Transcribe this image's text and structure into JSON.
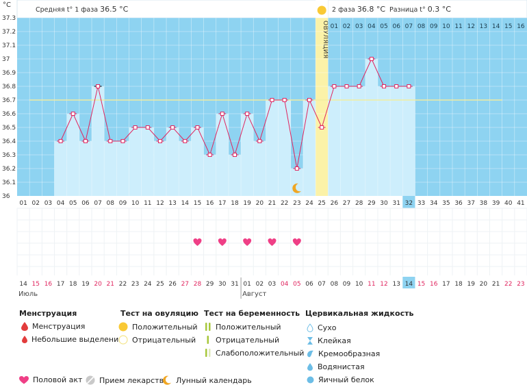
{
  "header": {
    "unit": "°C",
    "phase1_label": "Средняя t° 1 фаза",
    "phase1_value": "36.5 °C",
    "phase2_label": "2 фаза",
    "phase2_value": "36.8 °C",
    "diff_label": "Разница t°",
    "diff_value": "0.3 °C",
    "ovulation_label": "ОВУЛЯЦИЯ"
  },
  "chart_data": {
    "type": "bar",
    "ylabel": "°C",
    "ylim": [
      36,
      37.3
    ],
    "yticks": [
      "37.3",
      "37.2",
      "37.1",
      "37",
      "36.9",
      "36.8",
      "36.7",
      "36.6",
      "36.5",
      "36.4",
      "36.3",
      "36.2",
      "36.1",
      "36"
    ],
    "cycle_days": [
      "01",
      "02",
      "03",
      "04",
      "05",
      "06",
      "07",
      "08",
      "09",
      "10",
      "11",
      "12",
      "13",
      "14",
      "15",
      "16",
      "17",
      "18",
      "19",
      "20",
      "21",
      "22",
      "23",
      "24",
      "25",
      "26",
      "27",
      "28",
      "29",
      "30",
      "31",
      "32",
      "33",
      "34",
      "35",
      "36",
      "37",
      "38",
      "39",
      "40",
      "41"
    ],
    "temperatures": [
      null,
      null,
      null,
      36.4,
      36.6,
      36.4,
      36.8,
      36.4,
      36.4,
      36.5,
      36.5,
      36.4,
      36.5,
      36.4,
      36.5,
      36.3,
      36.6,
      36.3,
      36.6,
      36.4,
      36.7,
      36.7,
      36.2,
      36.7,
      36.5,
      36.8,
      36.8,
      36.8,
      37.0,
      36.8,
      36.8,
      36.8,
      null,
      null,
      null,
      null,
      null,
      null,
      null,
      null,
      null
    ],
    "coverline": 36.7,
    "ovulation_day": 25,
    "current_day": 32,
    "post_ovulation_numbers": [
      "01",
      "02",
      "03",
      "04",
      "05",
      "06",
      "07",
      "08",
      "09",
      "10",
      "11",
      "12",
      "13",
      "14",
      "15",
      "16"
    ],
    "calendar_dates": [
      "14",
      "15",
      "16",
      "17",
      "18",
      "19",
      "20",
      "21",
      "22",
      "23",
      "24",
      "25",
      "26",
      "27",
      "28",
      "29",
      "30",
      "31",
      "01",
      "02",
      "03",
      "04",
      "05",
      "06",
      "07",
      "08",
      "09",
      "10",
      "11",
      "12",
      "13",
      "14",
      "15",
      "16",
      "17",
      "18",
      "19",
      "20",
      "21",
      "22",
      "23"
    ],
    "red_dates": [
      1,
      2,
      6,
      7,
      13,
      14,
      21,
      22,
      28,
      29,
      32,
      33,
      39,
      40
    ],
    "month_labels": [
      {
        "index": 0,
        "label": "Июль"
      },
      {
        "index": 18,
        "label": "Август"
      }
    ],
    "heart_days": [
      15,
      17,
      19,
      21,
      23
    ],
    "moon_day": 23
  },
  "legend": {
    "menstruation": {
      "title": "Менструация",
      "items": [
        "Менструация",
        "Небольшие выделения"
      ]
    },
    "ovulation_test": {
      "title": "Тест на овуляцию",
      "items": [
        "Положительный",
        "Отрицательный"
      ]
    },
    "pregnancy_test": {
      "title": "Тест на беременность",
      "items": [
        "Положительный",
        "Отрицательный",
        "Слабоположительный"
      ]
    },
    "cervical_fluid": {
      "title": "Цервикальная жидкость",
      "items": [
        "Сухо",
        "Клейкая",
        "Кремообразная",
        "Водянистая",
        "Яичный белок"
      ]
    },
    "bottom": [
      "Половой акт",
      "Прием лекарств",
      "Лунный календарь"
    ]
  },
  "colors": {
    "plot_bg": "#8ed3f1",
    "bar": "#cdeefc",
    "line": "#e0245e",
    "coverline": "#f1eda0",
    "ovulation": "#fbf2a8",
    "heart": "#ef3f86",
    "highlight": "#8ed3f1",
    "red_text": "#e0245e",
    "drop": "#e23c3c",
    "sun": "#f9c935",
    "moon": "#f0a623"
  }
}
